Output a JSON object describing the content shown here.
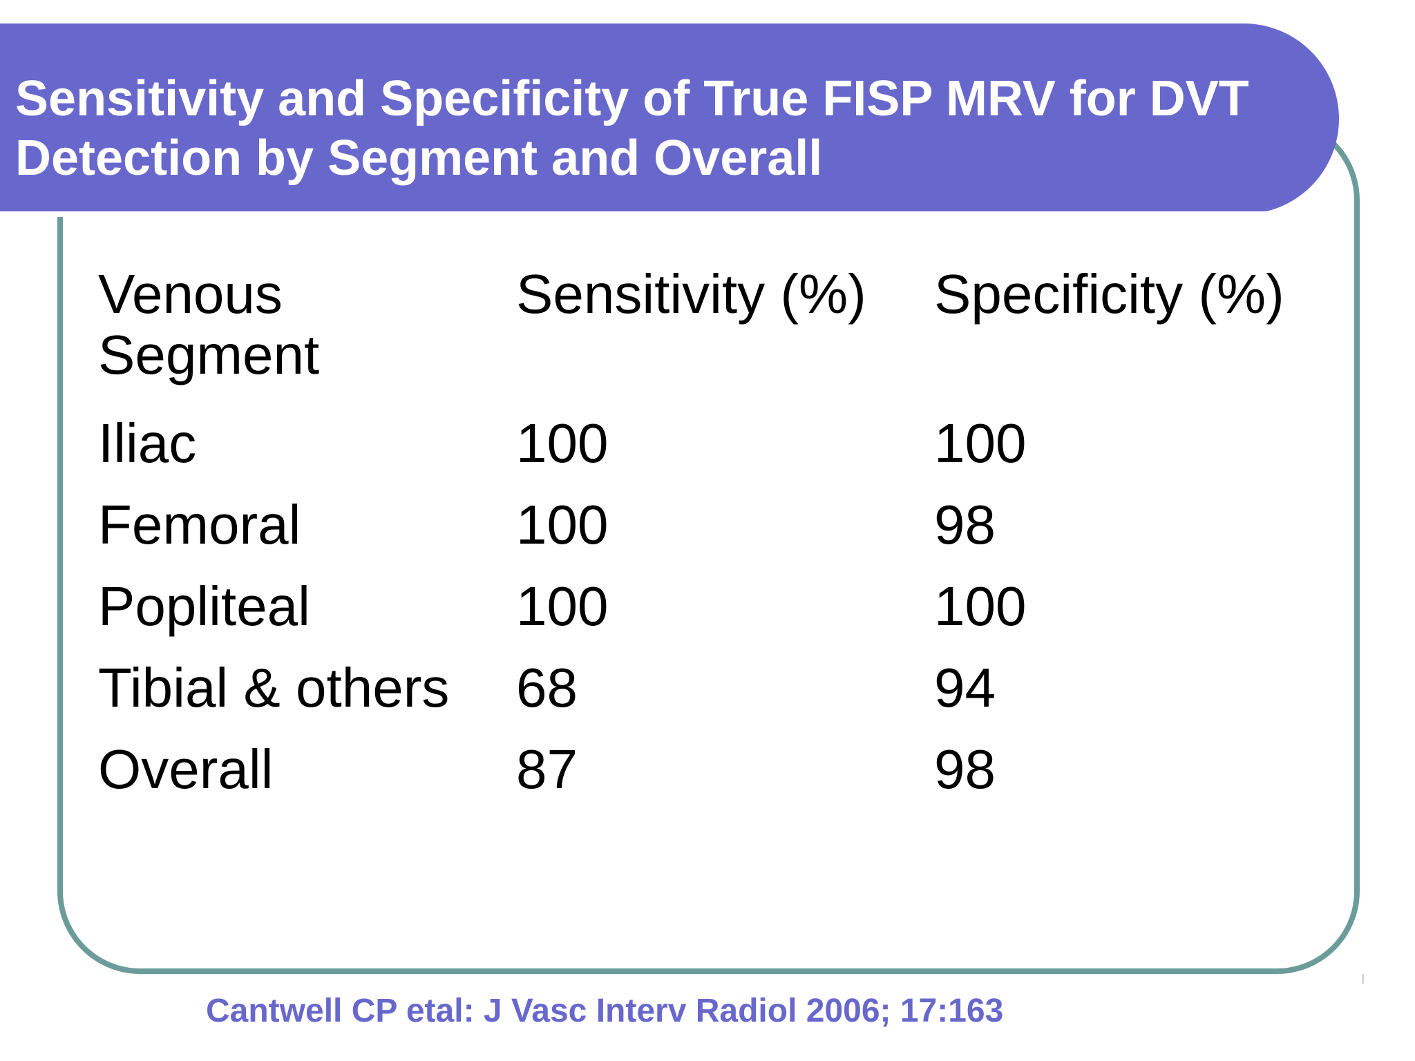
{
  "slide": {
    "title": "Sensitivity and Specificity of True FISP MRV for DVT Detection by Segment and Overall",
    "table": {
      "headers": [
        "Venous Segment",
        "Sensitivity (%)",
        "Specificity (%)"
      ],
      "rows": [
        [
          "Iliac",
          "100",
          "100"
        ],
        [
          "Femoral",
          "100",
          "98"
        ],
        [
          "Popliteal",
          "100",
          "100"
        ],
        [
          "Tibial & others",
          "68",
          "94"
        ],
        [
          "Overall",
          "87",
          "98"
        ]
      ]
    },
    "citation": "Cantwell CP etal: J Vasc Interv Radiol 2006; 17:163",
    "colors": {
      "title_band": "#6868cc",
      "frame_border": "#6b9c9a",
      "citation_text": "#6868cc"
    }
  }
}
